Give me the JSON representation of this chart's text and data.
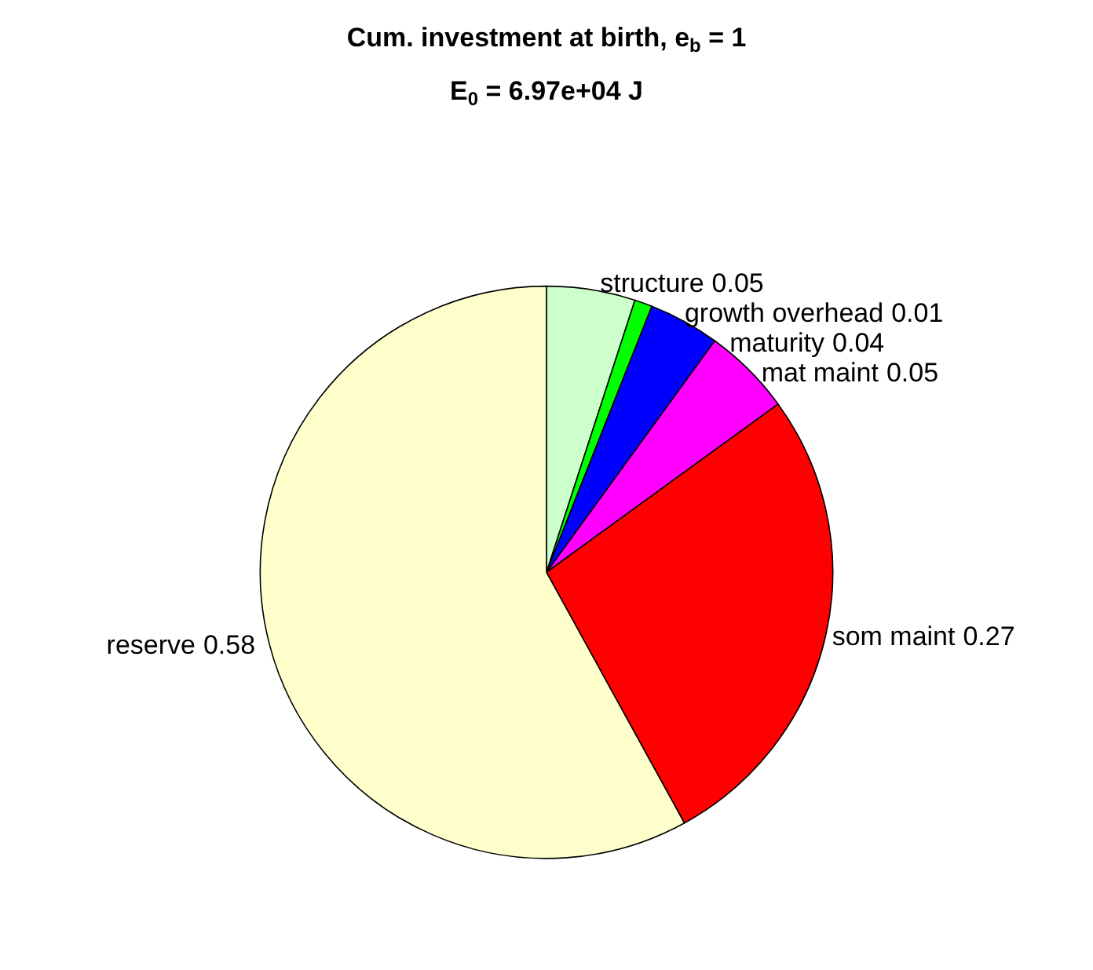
{
  "chart_data": {
    "type": "pie",
    "title": "Cum. investment at birth, e$_{b}$ = 1",
    "subtitle": "E$_{0}$ = 6.97e+04 J",
    "categories": [
      "structure",
      "growth overhead",
      "maturity",
      "mat maint",
      "som maint",
      "reserve"
    ],
    "values": [
      0.05,
      0.01,
      0.04,
      0.05,
      0.27,
      0.58
    ],
    "colors": [
      "#ccffcc",
      "#00ff00",
      "#0000ff",
      "#ff00ff",
      "#ff0000",
      "#ffffcc"
    ],
    "data_labels": true,
    "legend": false
  }
}
